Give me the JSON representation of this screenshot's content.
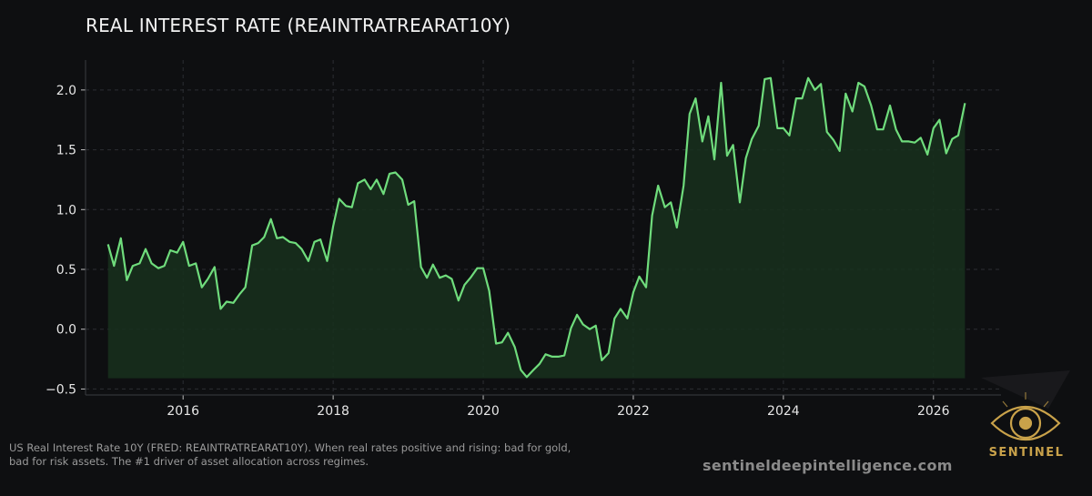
{
  "chart_data": {
    "type": "area",
    "title": "REAL INTEREST RATE (REAINTRATREARAT10Y)",
    "xlabel": "",
    "ylabel": "",
    "xlim": [
      2014.7,
      2026.9
    ],
    "ylim": [
      -0.55,
      2.25
    ],
    "x_ticks": [
      "2016",
      "2018",
      "2020",
      "2022",
      "2024",
      "2026"
    ],
    "y_ticks": [
      "−0.5",
      "0.0",
      "0.5",
      "1.0",
      "1.5",
      "2.0"
    ],
    "grid": true,
    "line_color": "#6fdc7c",
    "fill_color": "#17301d",
    "fill_baseline": -0.41,
    "series": [
      {
        "x": [
          2015.0,
          2015.08,
          2015.17,
          2015.25,
          2015.33,
          2015.42,
          2015.5,
          2015.58,
          2015.67,
          2015.75,
          2015.83,
          2015.92,
          2016.0,
          2016.08,
          2016.17,
          2016.25,
          2016.33,
          2016.42,
          2016.5,
          2016.58,
          2016.67,
          2016.75,
          2016.83,
          2016.92,
          2017.0,
          2017.08,
          2017.17,
          2017.25,
          2017.33,
          2017.42,
          2017.5,
          2017.58,
          2017.67,
          2017.75,
          2017.83,
          2017.92,
          2018.0,
          2018.08,
          2018.17,
          2018.25,
          2018.33,
          2018.42,
          2018.5,
          2018.58,
          2018.67,
          2018.75,
          2018.83,
          2018.92,
          2019.0,
          2019.08,
          2019.17,
          2019.25,
          2019.33,
          2019.42,
          2019.5,
          2019.58,
          2019.67,
          2019.75,
          2019.83,
          2019.92,
          2020.0,
          2020.08,
          2020.17,
          2020.25,
          2020.33,
          2020.42,
          2020.5,
          2020.58,
          2020.67,
          2020.75,
          2020.83,
          2020.92,
          2021.0,
          2021.08,
          2021.17,
          2021.25,
          2021.33,
          2021.42,
          2021.5,
          2021.58,
          2021.67,
          2021.75,
          2021.83,
          2021.92,
          2022.0,
          2022.08,
          2022.17,
          2022.25,
          2022.33,
          2022.42,
          2022.5,
          2022.58,
          2022.67,
          2022.75,
          2022.83,
          2022.92,
          2023.0,
          2023.08,
          2023.17,
          2023.25,
          2023.33,
          2023.42,
          2023.5,
          2023.58,
          2023.67,
          2023.75,
          2023.83,
          2023.92,
          2024.0,
          2024.08,
          2024.17,
          2024.25,
          2024.33,
          2024.42,
          2024.5,
          2024.58,
          2024.67,
          2024.75,
          2024.83,
          2024.92,
          2025.0,
          2025.08,
          2025.17,
          2025.25,
          2025.33,
          2025.42,
          2025.5,
          2025.58,
          2025.67,
          2025.75,
          2025.83,
          2025.92,
          2026.0,
          2026.08,
          2026.17,
          2026.25,
          2026.33,
          2026.42
        ],
        "values": [
          0.71,
          0.53,
          0.76,
          0.41,
          0.53,
          0.55,
          0.67,
          0.55,
          0.51,
          0.53,
          0.66,
          0.64,
          0.73,
          0.53,
          0.55,
          0.35,
          0.42,
          0.52,
          0.17,
          0.23,
          0.22,
          0.29,
          0.35,
          0.7,
          0.72,
          0.77,
          0.92,
          0.76,
          0.77,
          0.73,
          0.72,
          0.67,
          0.57,
          0.73,
          0.75,
          0.57,
          0.86,
          1.09,
          1.03,
          1.02,
          1.22,
          1.25,
          1.17,
          1.25,
          1.13,
          1.3,
          1.31,
          1.25,
          1.04,
          1.07,
          0.52,
          0.43,
          0.54,
          0.43,
          0.45,
          0.42,
          0.24,
          0.37,
          0.43,
          0.51,
          0.51,
          0.32,
          -0.12,
          -0.11,
          -0.03,
          -0.15,
          -0.34,
          -0.4,
          -0.34,
          -0.29,
          -0.21,
          -0.23,
          -0.23,
          -0.22,
          0.01,
          0.12,
          0.04,
          0.0,
          0.03,
          -0.26,
          -0.2,
          0.09,
          0.17,
          0.09,
          0.31,
          0.44,
          0.35,
          0.95,
          1.2,
          1.02,
          1.06,
          0.85,
          1.2,
          1.8,
          1.93,
          1.57,
          1.78,
          1.42,
          2.06,
          1.45,
          1.54,
          1.06,
          1.43,
          1.59,
          1.7,
          2.09,
          2.1,
          1.68,
          1.68,
          1.62,
          1.93,
          1.93,
          2.1,
          2.0,
          2.05,
          1.65,
          1.58,
          1.49,
          1.97,
          1.82,
          2.06,
          2.03,
          1.87,
          1.67,
          1.67,
          1.87,
          1.67,
          1.57,
          1.57,
          1.56,
          1.6,
          1.46,
          1.68,
          1.75,
          1.47,
          1.59,
          1.62,
          1.89
        ]
      }
    ]
  },
  "caption": "US Real Interest Rate 10Y (FRED: REAINTRATREARAT10Y). When real rates positive and rising: bad for gold, bad for risk assets. The #1 driver of asset allocation across regimes.",
  "watermark": "sentineldeepintelligence.com",
  "logo": {
    "icon": "eye-icon",
    "text": "SENTINEL",
    "color": "#c9a24a"
  }
}
